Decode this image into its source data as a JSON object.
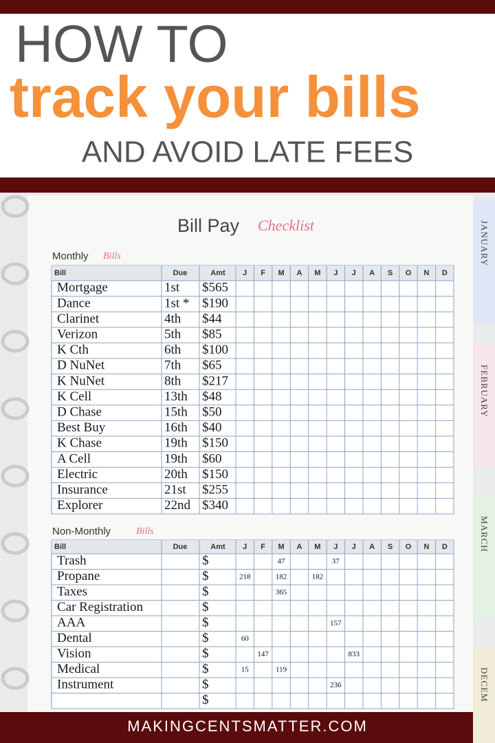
{
  "header": {
    "line1": "HOW TO",
    "line2": "track your bills",
    "line3": "AND AVOID LATE FEES"
  },
  "checklist": {
    "title": "Bill Pay",
    "title_script": "Checklist",
    "months": [
      "J",
      "F",
      "M",
      "A",
      "M",
      "J",
      "J",
      "A",
      "S",
      "O",
      "N",
      "D"
    ],
    "monthly": {
      "label": "Monthly",
      "label_script": "Bills",
      "columns": [
        "Bill",
        "Due",
        "Amt"
      ],
      "rows": [
        [
          "Mortgage",
          "1st",
          "$565"
        ],
        [
          "Dance",
          "1st *",
          "$190"
        ],
        [
          "Clarinet",
          "4th",
          "$44"
        ],
        [
          "Verizon",
          "5th",
          "$85"
        ],
        [
          "K Cth",
          "6th",
          "$100"
        ],
        [
          "D NuNet",
          "7th",
          "$65"
        ],
        [
          "K NuNet",
          "8th",
          "$217"
        ],
        [
          "K Cell",
          "13th",
          "$48"
        ],
        [
          "D Chase",
          "15th",
          "$50"
        ],
        [
          "Best Buy",
          "16th",
          "$40"
        ],
        [
          "K Chase",
          "19th",
          "$150"
        ],
        [
          "A Cell",
          "19th",
          "$60"
        ],
        [
          "Electric",
          "20th",
          "$150"
        ],
        [
          "Insurance",
          "21st",
          "$255"
        ],
        [
          "Explorer",
          "22nd",
          "$340"
        ]
      ]
    },
    "non_monthly": {
      "label": "Non-Monthly",
      "label_script": "Bills",
      "columns": [
        "Bill",
        "Due",
        "Amt"
      ],
      "rows": [
        {
          "bill": "Trash",
          "amt": "$",
          "cells": [
            null,
            null,
            "47",
            null,
            null,
            "37",
            null,
            null,
            null,
            null,
            null,
            null
          ]
        },
        {
          "bill": "Propane",
          "amt": "$",
          "cells": [
            "218",
            null,
            "182",
            null,
            "182",
            null,
            null,
            null,
            null,
            null,
            null,
            null
          ]
        },
        {
          "bill": "Taxes",
          "amt": "$",
          "cells": [
            null,
            null,
            "365",
            null,
            null,
            null,
            null,
            null,
            null,
            null,
            null,
            null
          ]
        },
        {
          "bill": "Car Registration",
          "amt": "$",
          "cells": [
            null,
            null,
            null,
            null,
            null,
            null,
            null,
            null,
            null,
            null,
            null,
            null
          ]
        },
        {
          "bill": "AAA",
          "amt": "$",
          "cells": [
            null,
            null,
            null,
            null,
            null,
            "157",
            null,
            null,
            null,
            null,
            null,
            null
          ]
        },
        {
          "bill": "Dental",
          "amt": "$",
          "cells": [
            "60",
            null,
            null,
            null,
            null,
            null,
            null,
            null,
            null,
            null,
            null,
            null
          ]
        },
        {
          "bill": "Vision",
          "amt": "$",
          "cells": [
            null,
            "147",
            null,
            null,
            null,
            null,
            "833",
            null,
            null,
            null,
            null,
            null
          ]
        },
        {
          "bill": "Medical",
          "amt": "$",
          "cells": [
            "15",
            null,
            "119",
            null,
            null,
            null,
            null,
            null,
            null,
            null,
            null,
            null
          ]
        },
        {
          "bill": "Instrument",
          "amt": "$",
          "cells": [
            null,
            null,
            null,
            null,
            null,
            "236",
            null,
            null,
            null,
            null,
            null,
            null
          ]
        },
        {
          "bill": null,
          "amt": "$",
          "cells": [
            null,
            null,
            null,
            null,
            null,
            null,
            null,
            null,
            null,
            null,
            null,
            null
          ]
        }
      ]
    }
  },
  "tabs": [
    "JANUARY",
    "FEBRUARY",
    "MARCH",
    "DECEM"
  ],
  "footer": "MAKINGCENTSMATTER.COM"
}
